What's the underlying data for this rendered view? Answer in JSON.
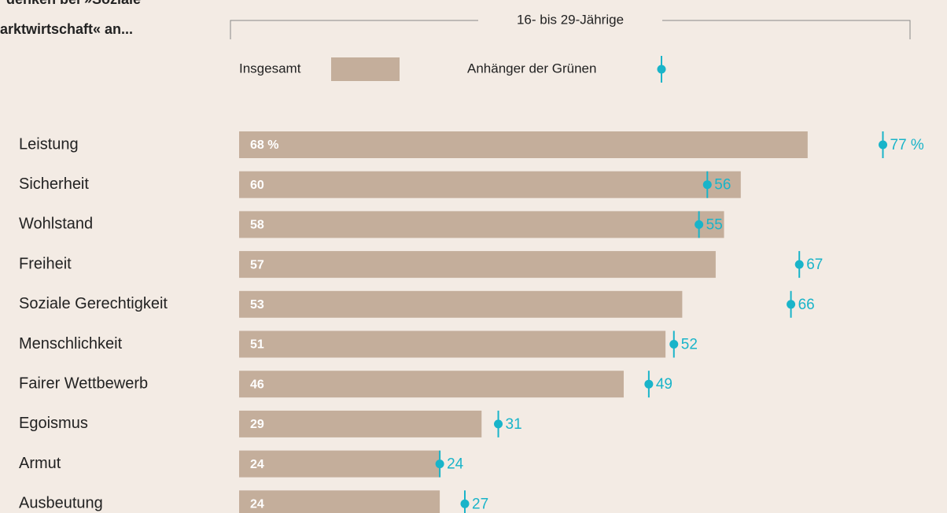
{
  "chart_data": {
    "type": "bar",
    "title_lines": [
      "denken bei »Soziale",
      "arktwirtschaft« an..."
    ],
    "subtitle": "16- bis 29-Jährige",
    "categories": [
      "Leistung",
      "Sicherheit",
      "Wohlstand",
      "Freiheit",
      "Soziale Gerechtigkeit",
      "Menschlichkeit",
      "Fairer Wettbewerb",
      "Egoismus",
      "Armut",
      "Ausbeutung"
    ],
    "series": [
      {
        "name": "Insgesamt",
        "color": "#c4ae9b",
        "marker": "bar",
        "values": [
          68,
          60,
          58,
          57,
          53,
          51,
          46,
          29,
          24,
          24
        ],
        "value_labels": [
          "68 %",
          "60",
          "58",
          "57",
          "53",
          "51",
          "46",
          "29",
          "24",
          "24"
        ]
      },
      {
        "name": "Anhänger der Grünen",
        "color": "#19b4c9",
        "marker": "dot",
        "values": [
          77,
          56,
          55,
          67,
          66,
          52,
          49,
          31,
          24,
          27
        ],
        "value_labels": [
          "77 %",
          "56",
          "55",
          "67",
          "66",
          "52",
          "49",
          "31",
          "24",
          "27"
        ]
      }
    ],
    "xlim": [
      0,
      100
    ]
  }
}
